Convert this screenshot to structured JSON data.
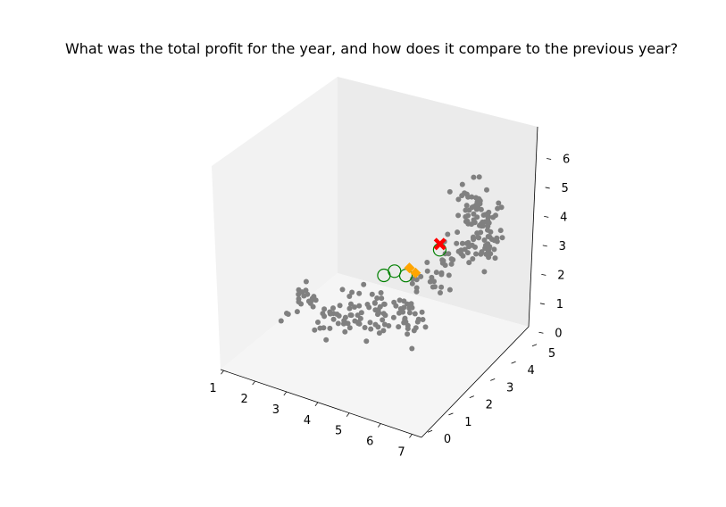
{
  "chart_data": {
    "type": "scatter",
    "title": "What was the total profit for the year, and how does it compare to the previous year?",
    "projection": "3d",
    "xlabel": "",
    "ylabel": "",
    "zlabel": "",
    "xlim": [
      0.9,
      7.3
    ],
    "ylim": [
      -0.3,
      5.3
    ],
    "zlim": [
      -0.3,
      6.6
    ],
    "x_ticks": [
      "1",
      "2",
      "3",
      "4",
      "5",
      "6",
      "7"
    ],
    "y_ticks": [
      "0",
      "1",
      "2",
      "3",
      "4",
      "5"
    ],
    "z_ticks": [
      "0",
      "1",
      "2",
      "3",
      "4",
      "5",
      "6"
    ],
    "grid": false,
    "colors": {
      "points": "#808080",
      "highlight_ring": "#008000",
      "target_marker": "#ff0000",
      "diamond_marker": "#ffa500",
      "pane_left": "#f2f2f2",
      "pane_back": "#ebebeb",
      "pane_floor": "#f5f5f5"
    },
    "clusters": [
      {
        "center": [
          1.4,
          2.8,
          0.5
        ],
        "spread": [
          0.15,
          0.35,
          0.2
        ],
        "count": 20
      },
      {
        "center": [
          2.6,
          2.6,
          0.4
        ],
        "spread": [
          0.35,
          0.4,
          0.25
        ],
        "count": 35
      },
      {
        "center": [
          3.8,
          2.5,
          1.1
        ],
        "spread": [
          0.35,
          0.35,
          0.35
        ],
        "count": 40
      },
      {
        "center": [
          5.0,
          2.5,
          1.4
        ],
        "spread": [
          0.3,
          0.3,
          0.35
        ],
        "count": 30
      },
      {
        "center": [
          5.4,
          3.1,
          2.4
        ],
        "spread": [
          0.3,
          0.3,
          0.3
        ],
        "count": 22
      },
      {
        "center": [
          5.9,
          3.6,
          3.3
        ],
        "spread": [
          0.3,
          0.35,
          0.3
        ],
        "count": 28
      },
      {
        "center": [
          6.2,
          3.5,
          4.9
        ],
        "spread": [
          0.15,
          0.25,
          0.45
        ],
        "count": 40
      },
      {
        "center": [
          6.6,
          3.6,
          3.8
        ],
        "spread": [
          0.2,
          0.25,
          0.3
        ],
        "count": 30
      },
      {
        "center": [
          6.4,
          3.9,
          4.4
        ],
        "spread": [
          0.15,
          0.2,
          0.3
        ],
        "count": 20
      }
    ],
    "highlight_points": [
      {
        "x": 4.0,
        "y": 2.7,
        "z": 2.3
      },
      {
        "x": 4.2,
        "y": 2.9,
        "z": 2.4
      },
      {
        "x": 4.5,
        "y": 3.0,
        "z": 2.3
      },
      {
        "x": 5.4,
        "y": 3.2,
        "z": 3.4
      }
    ],
    "diamond_points": [
      {
        "x": 4.6,
        "y": 3.0,
        "z": 2.6
      },
      {
        "x": 4.8,
        "y": 3.0,
        "z": 2.5
      }
    ],
    "target_point": {
      "x": 5.4,
      "y": 3.2,
      "z": 3.6
    }
  }
}
